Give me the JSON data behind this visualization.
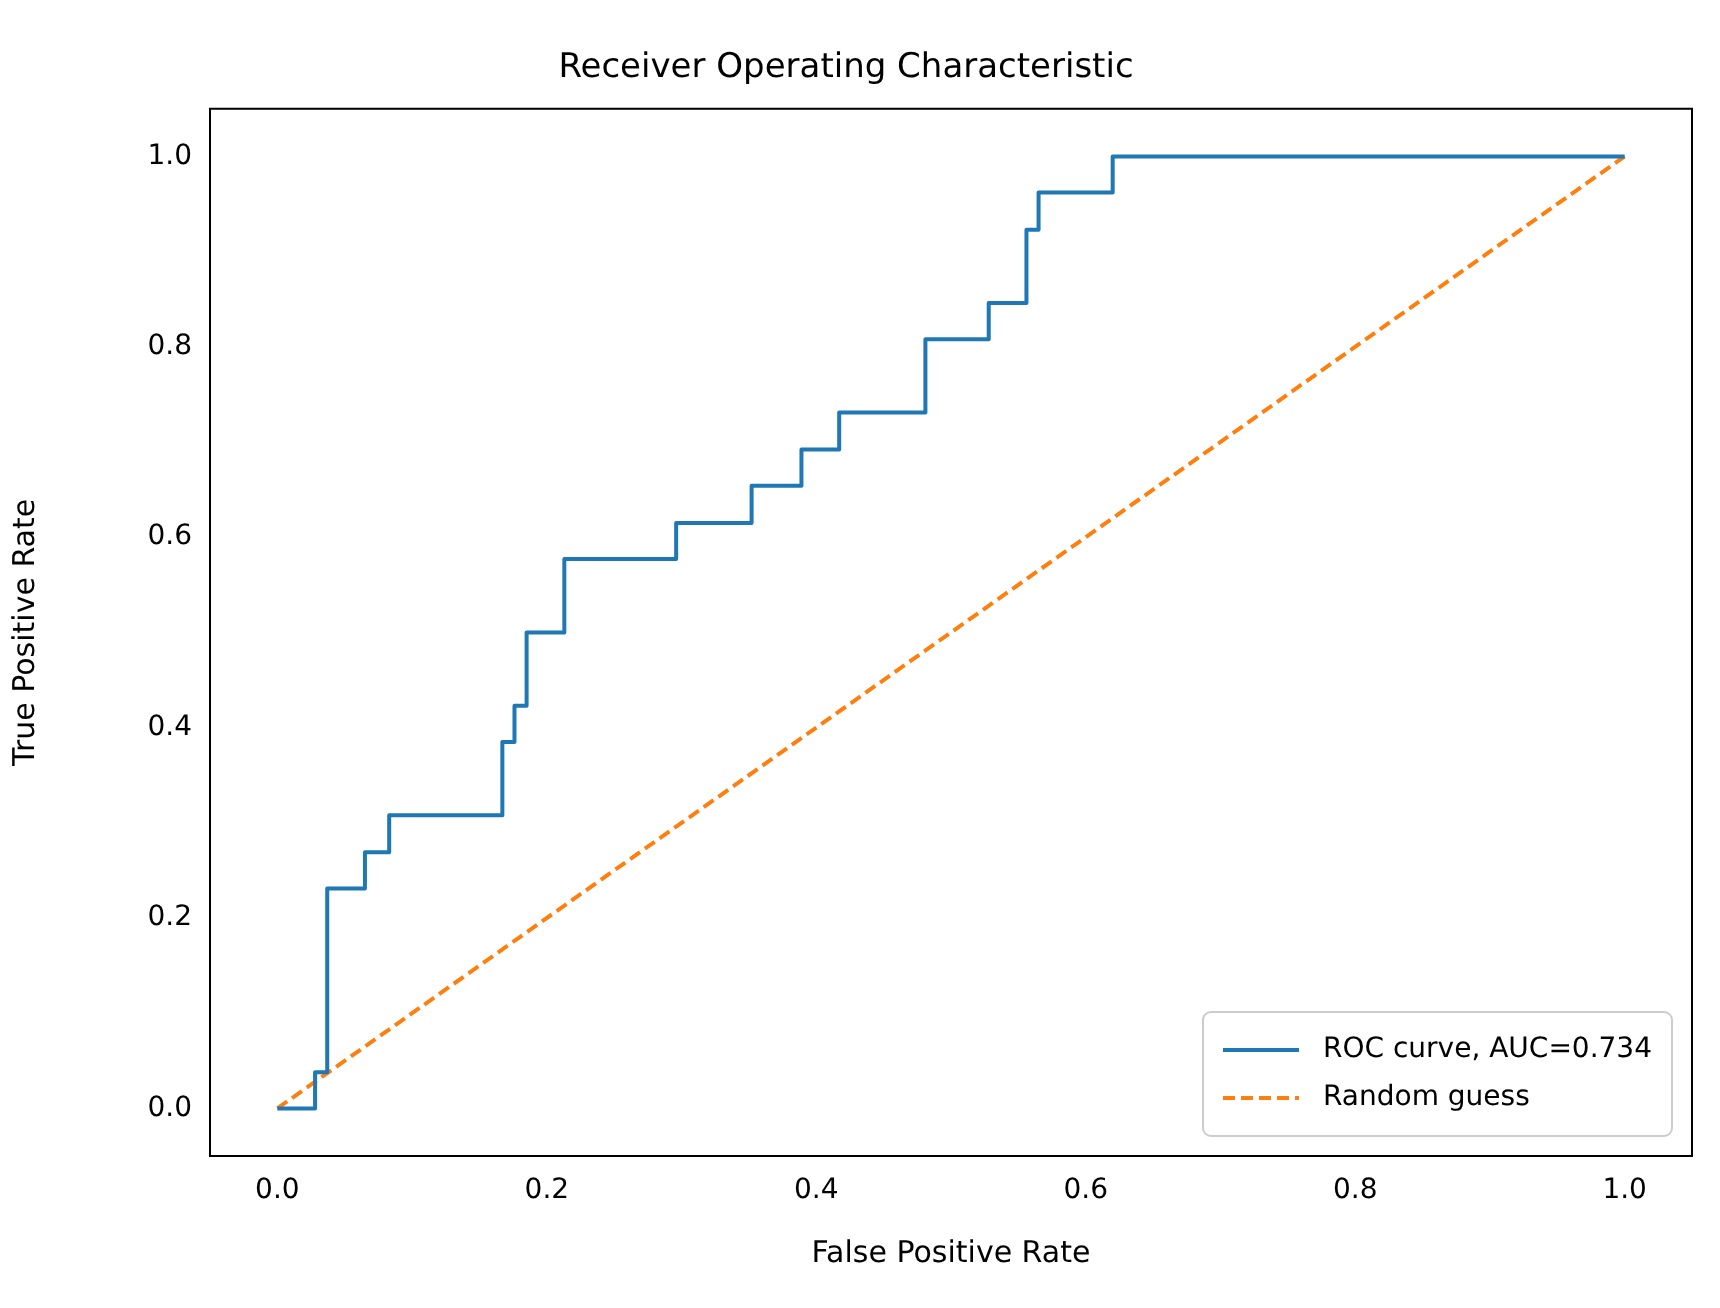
{
  "chart_data": {
    "type": "line",
    "title": "Receiver Operating Characteristic",
    "xlabel": "False Positive Rate",
    "ylabel": "True Positive Rate",
    "series": [
      {
        "name": "ROC curve, AUC=0.734",
        "type": "step",
        "color": "#1f77b4",
        "x": [
          0,
          0.028,
          0.037,
          0.065,
          0.083,
          0.167,
          0.176,
          0.185,
          0.213,
          0.296,
          0.352,
          0.389,
          0.417,
          0.481,
          0.528,
          0.556,
          0.565,
          0.62,
          1
        ],
        "values": [
          0,
          0.038,
          0.231,
          0.269,
          0.308,
          0.385,
          0.423,
          0.5,
          0.577,
          0.615,
          0.654,
          0.692,
          0.731,
          0.808,
          0.846,
          0.923,
          0.962,
          1,
          1
        ]
      },
      {
        "name": "Random guess",
        "type": "line",
        "color": "#ff7f0e",
        "line_style": "dashed",
        "x": [
          0,
          1
        ],
        "values": [
          0,
          1
        ]
      }
    ],
    "xlim": [
      -0.05,
      1.05
    ],
    "ylim": [
      -0.05,
      1.05
    ],
    "xticks": [
      {
        "value": 0,
        "label": "0.0"
      },
      {
        "value": 0.2,
        "label": "0.2"
      },
      {
        "value": 0.4,
        "label": "0.4"
      },
      {
        "value": 0.6,
        "label": "0.6"
      },
      {
        "value": 0.8,
        "label": "0.8"
      },
      {
        "value": 1,
        "label": "1.0"
      }
    ],
    "yticks": [
      {
        "value": 0,
        "label": "0.0"
      },
      {
        "value": 0.2,
        "label": "0.2"
      },
      {
        "value": 0.4,
        "label": "0.4"
      },
      {
        "value": 0.6,
        "label": "0.6"
      },
      {
        "value": 0.8,
        "label": "0.8"
      },
      {
        "value": 1,
        "label": "1.0"
      }
    ],
    "grid": false,
    "legend": "bottom right",
    "marker": "none"
  }
}
